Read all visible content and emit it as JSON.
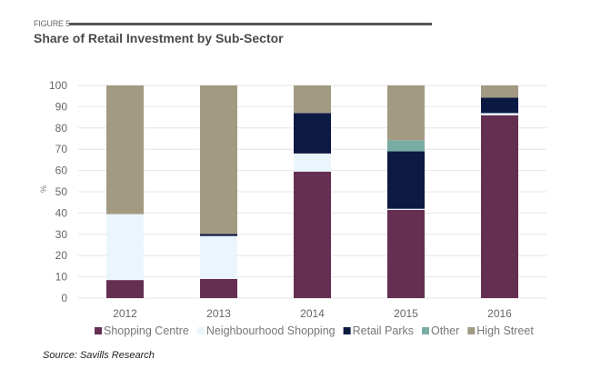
{
  "figure_label": "FIGURE 5",
  "source": "Source: Savills Research",
  "chart_data": {
    "type": "bar",
    "stacked": true,
    "title": "Share of Retail Investment by Sub-Sector",
    "xlabel": "",
    "ylabel": "%",
    "ylim": [
      0,
      100
    ],
    "yticks": [
      0,
      10,
      20,
      30,
      40,
      50,
      60,
      70,
      80,
      90,
      100
    ],
    "grid": true,
    "legend_position": "bottom",
    "categories": [
      "2012",
      "2013",
      "2014",
      "2015",
      "2016"
    ],
    "series": [
      {
        "name": "Shopping Centre",
        "color": "#652f52",
        "values": [
          8.5,
          9,
          59.5,
          41.5,
          86
        ]
      },
      {
        "name": "Neighbourhood Shopping",
        "color": "#eaf6fc",
        "values": [
          31,
          20.2,
          8.5,
          0.5,
          1
        ]
      },
      {
        "name": "Retail Parks",
        "color": "#0c1943",
        "values": [
          0,
          1,
          19,
          27,
          7.3
        ]
      },
      {
        "name": "Other",
        "color": "#79aca4",
        "values": [
          0,
          0,
          0,
          5.2,
          0
        ]
      },
      {
        "name": "High Street",
        "color": "#a39a83",
        "values": [
          60.5,
          69.8,
          13,
          25.8,
          5.7
        ]
      }
    ]
  }
}
